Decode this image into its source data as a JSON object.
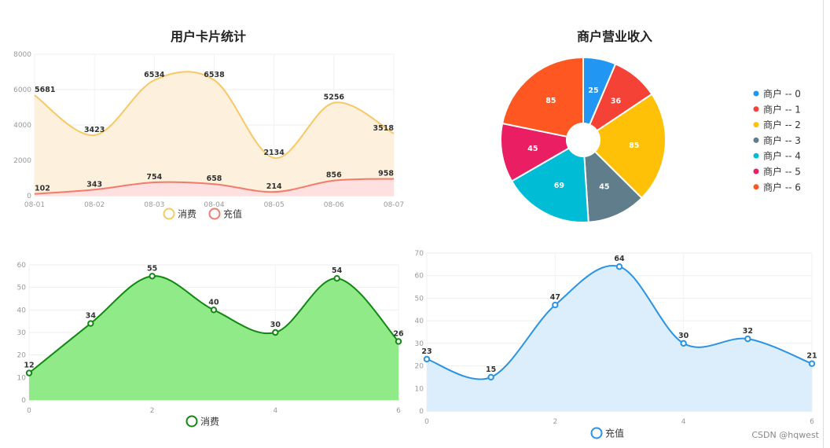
{
  "watermark": "CSDN @hqwest",
  "chart_data": [
    {
      "type": "area",
      "title": "用户卡片统计",
      "categories": [
        "08-01",
        "08-02",
        "08-03",
        "08-04",
        "08-05",
        "08-06",
        "08-07"
      ],
      "ylim": [
        0,
        8000
      ],
      "yticks": [
        0,
        2000,
        4000,
        6000,
        8000
      ],
      "grid": true,
      "legend_position": "bottom-center",
      "series": [
        {
          "name": "消费",
          "values": [
            5681,
            3423,
            6534,
            6538,
            2134,
            5256,
            3518
          ],
          "color": "#f7c865",
          "fill": "#fdf1dd"
        },
        {
          "name": "充值",
          "values": [
            102,
            343,
            754,
            658,
            214,
            856,
            958
          ],
          "color": "#f47a6a",
          "fill": "#fde0df"
        }
      ]
    },
    {
      "type": "pie",
      "title": "商户营业收入",
      "legend_position": "right",
      "slices": [
        {
          "label": "商户 -- 0",
          "value": 25,
          "color": "#2196f3"
        },
        {
          "label": "商户 -- 1",
          "value": 36,
          "color": "#f44336"
        },
        {
          "label": "商户 -- 2",
          "value": 85,
          "color": "#ffc107"
        },
        {
          "label": "商户 -- 3",
          "value": 45,
          "color": "#607d8b"
        },
        {
          "label": "商户 -- 4",
          "value": 69,
          "color": "#00bcd4"
        },
        {
          "label": "商户 -- 5",
          "value": 45,
          "color": "#e91e63"
        },
        {
          "label": "商户 -- 6",
          "value": 85,
          "color": "#ff5722"
        }
      ]
    },
    {
      "type": "area",
      "title": "",
      "x": [
        0,
        1,
        2,
        3,
        4,
        5,
        6
      ],
      "xticks": [
        0,
        2,
        4,
        6
      ],
      "ylim": [
        0,
        60
      ],
      "yticks": [
        0,
        10,
        20,
        30,
        40,
        50,
        60
      ],
      "grid": true,
      "legend_position": "bottom-center",
      "series": [
        {
          "name": "消费",
          "values": [
            12,
            34,
            55,
            40,
            30,
            54,
            26
          ],
          "color": "#118811",
          "fill": "#90ea88"
        }
      ]
    },
    {
      "type": "area",
      "title": "",
      "x": [
        0,
        1,
        2,
        3,
        4,
        5,
        6
      ],
      "xticks": [
        0,
        2,
        4,
        6
      ],
      "ylim": [
        0,
        70
      ],
      "yticks": [
        0,
        10,
        20,
        30,
        40,
        50,
        60,
        70
      ],
      "grid": true,
      "legend_position": "bottom-center",
      "series": [
        {
          "name": "充值",
          "values": [
            23,
            15,
            47,
            64,
            30,
            32,
            21
          ],
          "color": "#2b93e6",
          "fill": "#dcedfb"
        }
      ]
    }
  ]
}
